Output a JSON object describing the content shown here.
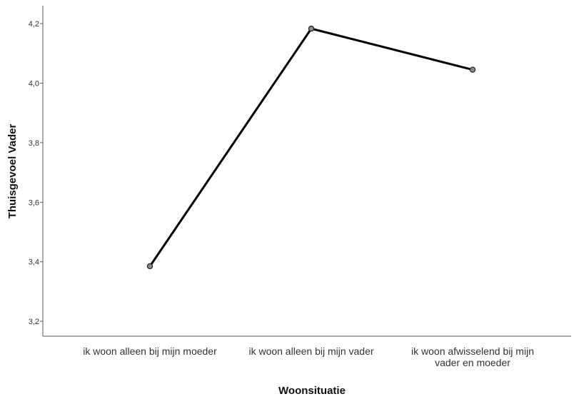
{
  "chart_data": {
    "type": "line",
    "title": "",
    "xlabel": "Woonsituatie",
    "ylabel": "Thuisgevoel Vader",
    "categories": [
      [
        "ik woon alleen bij mijn moeder"
      ],
      [
        "ik woon alleen bij mijn vader"
      ],
      [
        "ik woon afwisselend bij mijn",
        "vader en moeder"
      ]
    ],
    "series": [
      {
        "values": [
          3.385,
          4.183,
          4.045
        ]
      }
    ],
    "ylim": [
      3.15,
      4.26
    ],
    "yticks": [
      3.2,
      3.4,
      3.6,
      3.8,
      4.0,
      4.2
    ],
    "ytick_labels": [
      "3,2",
      "3,4",
      "3,6",
      "3,8",
      "4,0",
      "4,2"
    ],
    "grid": false,
    "legend": "none",
    "colors": {
      "line": "#000000",
      "marker_fill": "#8a8a8a",
      "marker_stroke": "#222222",
      "axis": "#5a5a5a"
    }
  }
}
